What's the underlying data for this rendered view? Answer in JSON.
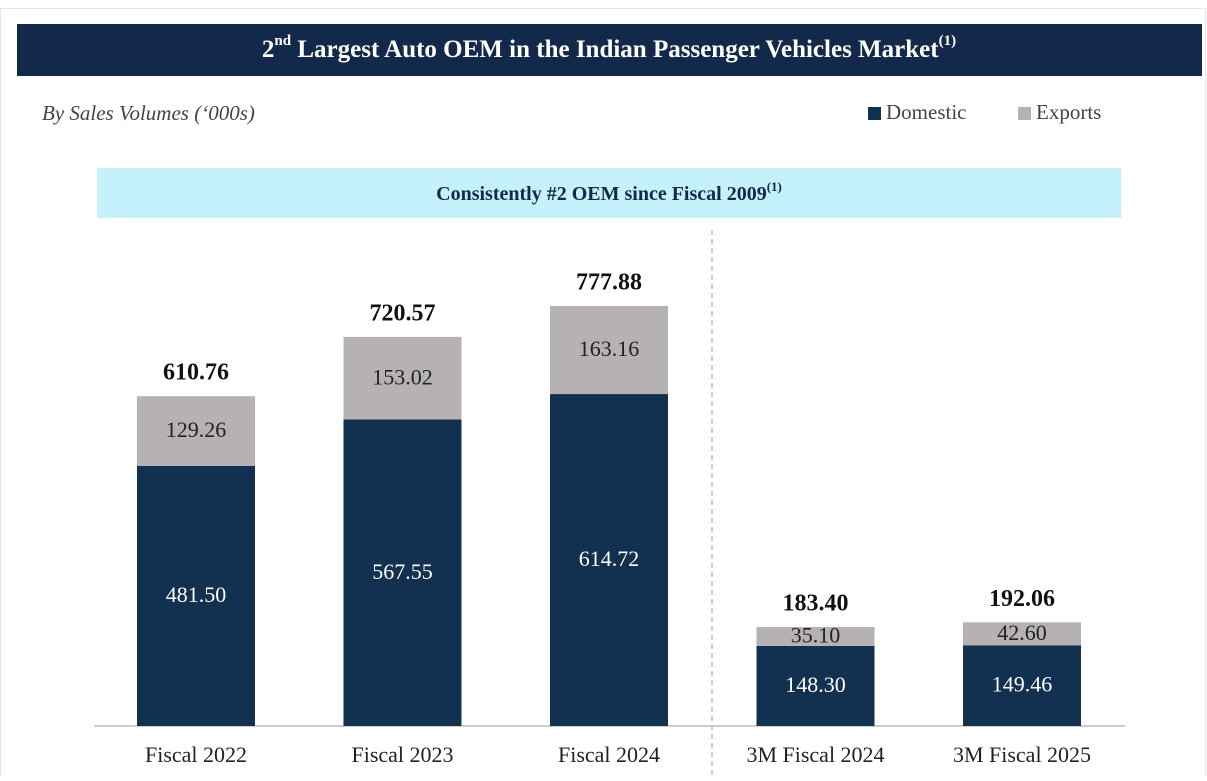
{
  "chart_data": {
    "type": "stacked_bar",
    "title": [
      "2",
      "nd",
      " Largest Auto OEM in the Indian Passenger Vehicles Market",
      "(1)"
    ],
    "subtitle": "By Sales Volumes (‘000s)",
    "banner": [
      "Consistently #2 OEM since Fiscal 2009",
      "(1)"
    ],
    "categories": [
      "Fiscal 2022",
      "Fiscal 2023",
      "Fiscal 2024",
      "3M Fiscal 2024",
      "3M Fiscal 2025"
    ],
    "series": [
      {
        "name": "Domestic",
        "color": "#12304f",
        "label_color": "#ffffff",
        "values": [
          481.5,
          567.55,
          614.72,
          148.3,
          149.46
        ],
        "value_labels": [
          "481.50",
          "567.55",
          "614.72",
          "148.30",
          "149.46"
        ]
      },
      {
        "name": "Exports",
        "color": "#b5b1b5",
        "label_color": "#222222",
        "values": [
          129.26,
          153.02,
          163.16,
          35.1,
          42.6
        ],
        "value_labels": [
          "129.26",
          "153.02",
          "163.16",
          "35.10",
          "42.60"
        ]
      }
    ],
    "totals": [
      610.76,
      720.57,
      777.88,
      183.4,
      192.06
    ],
    "total_labels": [
      "610.76",
      "720.57",
      "777.88",
      "183.40",
      "192.06"
    ],
    "ylim": [
      0,
      800
    ]
  }
}
